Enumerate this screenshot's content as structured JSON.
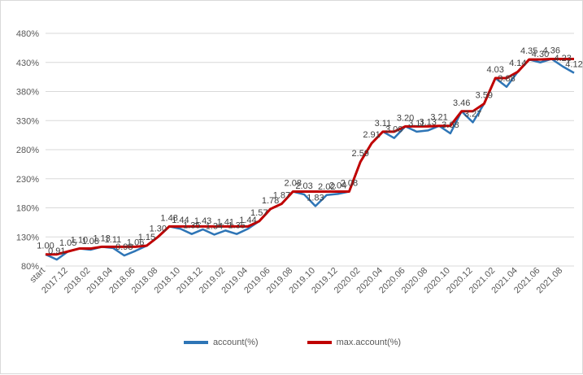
{
  "chart_data": {
    "type": "line",
    "x": [
      "start",
      "2017.11",
      "2017.12",
      "2018.01",
      "2018.02",
      "2018.03",
      "2018.04",
      "2018.05",
      "2018.06",
      "2018.07",
      "2018.08",
      "2018.09",
      "2018.10",
      "2018.11",
      "2018.12",
      "2019.01",
      "2019.02",
      "2019.03",
      "2019.04",
      "2019.05",
      "2019.06",
      "2019.07",
      "2019.08",
      "2019.09",
      "2019.10",
      "2019.11",
      "2019.12",
      "2020.01",
      "2020.02",
      "2020.03",
      "2020.04",
      "2020.05",
      "2020.06",
      "2020.07",
      "2020.08",
      "2020.09",
      "2020.10",
      "2020.11",
      "2020.12",
      "2021.01",
      "2021.02",
      "2021.03",
      "2021.04",
      "2021.05",
      "2021.06",
      "2021.07",
      "2021.08",
      "2021.09"
    ],
    "x_tick_labels": [
      "start",
      "2017.12",
      "2018.02",
      "2018.04",
      "2018.06",
      "2018.08",
      "2018.10",
      "2018.12",
      "2019.02",
      "2019.04",
      "2019.06",
      "2019.08",
      "2019.10",
      "2019.12",
      "2020.02",
      "2020.04",
      "2020.06",
      "2020.08",
      "2020.10",
      "2020.12",
      "2021.02",
      "2021.04",
      "2021.06",
      "2021.08"
    ],
    "series": [
      {
        "name": "account(%)",
        "color": "#2e75b6",
        "values": [
          1.0,
          0.91,
          1.05,
          1.1,
          1.08,
          1.13,
          1.11,
          0.98,
          1.06,
          1.15,
          1.3,
          1.48,
          1.44,
          1.35,
          1.43,
          1.34,
          1.41,
          1.35,
          1.44,
          1.57,
          1.78,
          1.87,
          2.08,
          2.03,
          1.83,
          2.02,
          2.04,
          2.08,
          2.59,
          2.91,
          3.11,
          3.0,
          3.2,
          3.11,
          3.13,
          3.21,
          3.08,
          3.46,
          3.27,
          3.59,
          4.03,
          3.88,
          4.14,
          4.35,
          4.3,
          4.36,
          4.23,
          4.12
        ]
      },
      {
        "name": "max.account(%)",
        "color": "#c00000",
        "values": [
          1.0,
          1.0,
          1.05,
          1.1,
          1.1,
          1.13,
          1.13,
          1.13,
          1.13,
          1.15,
          1.3,
          1.48,
          1.48,
          1.48,
          1.48,
          1.48,
          1.48,
          1.48,
          1.48,
          1.57,
          1.78,
          1.87,
          2.08,
          2.08,
          2.08,
          2.08,
          2.08,
          2.08,
          2.59,
          2.91,
          3.11,
          3.11,
          3.2,
          3.2,
          3.2,
          3.21,
          3.21,
          3.46,
          3.46,
          3.59,
          4.03,
          4.03,
          4.14,
          4.35,
          4.35,
          4.36,
          4.36,
          4.36
        ]
      }
    ],
    "data_labels": [
      "1.00",
      "0.91",
      "1.05",
      "1.10",
      "1.08",
      "1.13",
      "1.11",
      "0.98",
      "1.06",
      "1.15",
      "1.30",
      "1.48",
      "1.44",
      "1.35",
      "1.43",
      "1.34",
      "1.41",
      "1.35",
      "1.44",
      "1.57",
      "1.78",
      "1.87",
      "2.08",
      "2.03",
      "1.83",
      "2.02",
      "2.04",
      "2.08",
      "2.59",
      "2.91",
      "3.11",
      "3.00",
      "3.20",
      "3.11",
      "3.13",
      "3.21",
      "3.08",
      "3.46",
      "3.27",
      "3.59",
      "4.03",
      "3.88",
      "4.14",
      "4.35",
      "4.30",
      "4.36",
      "4.23",
      "4.12"
    ],
    "y_tick_labels": [
      "80%",
      "130%",
      "180%",
      "230%",
      "280%",
      "330%",
      "380%",
      "430%",
      "480%"
    ],
    "ylim": [
      0.8,
      4.8
    ],
    "y_tick_step": 0.5,
    "grid": true,
    "legend_position": "bottom"
  }
}
